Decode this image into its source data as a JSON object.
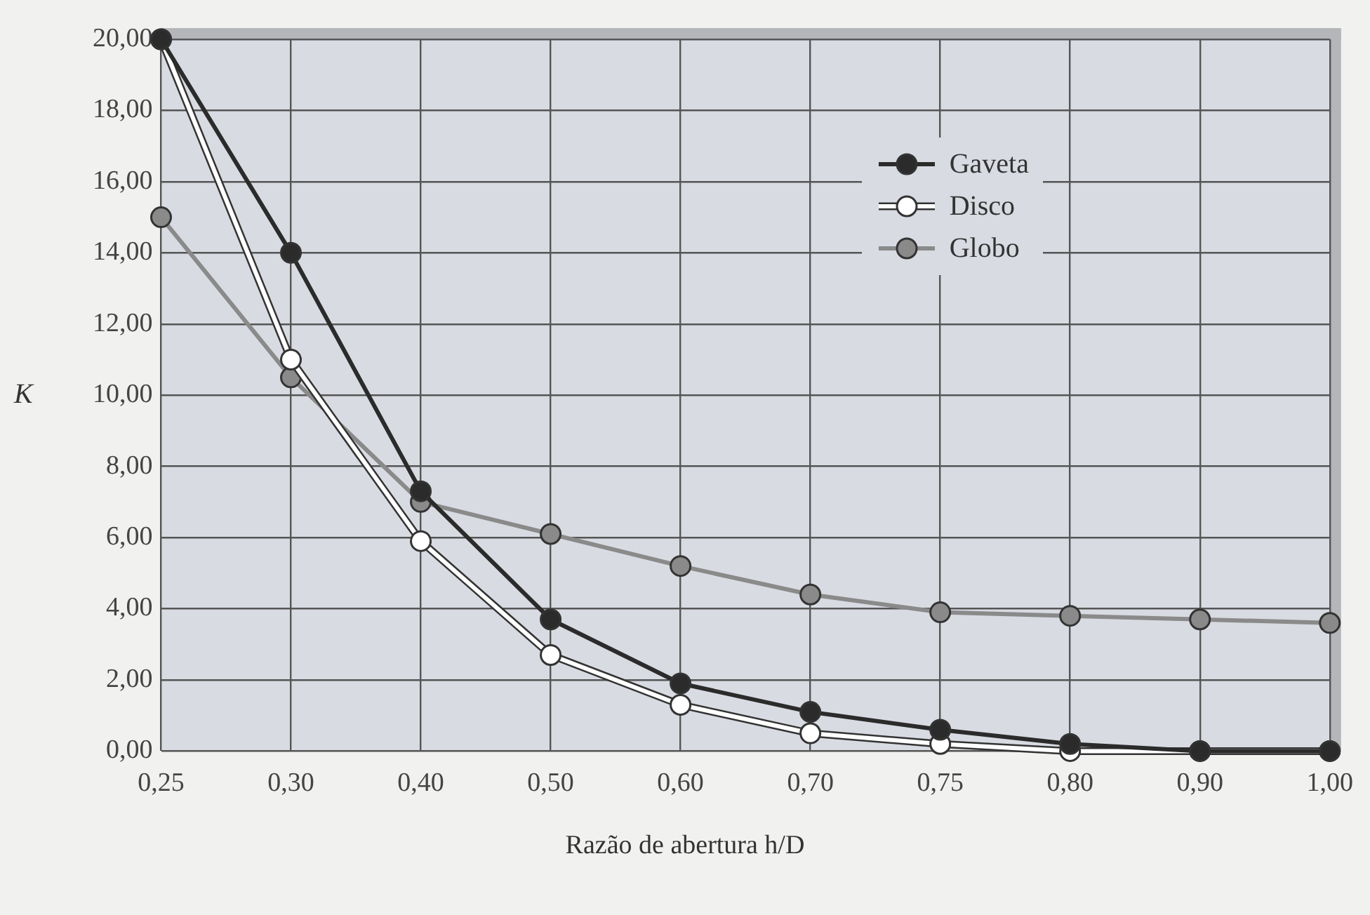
{
  "chart_data": {
    "type": "line",
    "xlabel": "Razão de abertura h/D",
    "ylabel": "K",
    "categories": [
      "0,25",
      "0,30",
      "0,40",
      "0,50",
      "0,60",
      "0,70",
      "0,75",
      "0,80",
      "0,90",
      "1,00"
    ],
    "series": [
      {
        "name": "Gaveta",
        "color": "#2b2b2b",
        "values": [
          20,
          14,
          7.3,
          3.7,
          1.9,
          1.1,
          0.6,
          0.2,
          0,
          0
        ]
      },
      {
        "name": "Disco",
        "color": "#ffffff",
        "values": [
          20,
          11,
          5.9,
          2.7,
          1.3,
          0.5,
          0.2,
          0,
          0,
          0
        ]
      },
      {
        "name": "Globo",
        "color": "#8a8a8a",
        "values": [
          15,
          10.5,
          7,
          6.1,
          5.2,
          4.4,
          3.9,
          3.8,
          3.7,
          3.6
        ]
      }
    ],
    "ylim": [
      0,
      20
    ],
    "yticks": [
      {
        "value": 0,
        "label": "0,00"
      },
      {
        "value": 2,
        "label": "2,00"
      },
      {
        "value": 4,
        "label": "4,00"
      },
      {
        "value": 6,
        "label": "6,00"
      },
      {
        "value": 8,
        "label": "8,00"
      },
      {
        "value": 10,
        "label": "10,00"
      },
      {
        "value": 12,
        "label": "12,00"
      },
      {
        "value": 14,
        "label": "14,00"
      },
      {
        "value": 16,
        "label": "16,00"
      },
      {
        "value": 18,
        "label": "18,00"
      },
      {
        "value": 20,
        "label": "20,00"
      }
    ],
    "grid": true,
    "legend": "top right",
    "marker": "circle",
    "line_style": "solid"
  }
}
